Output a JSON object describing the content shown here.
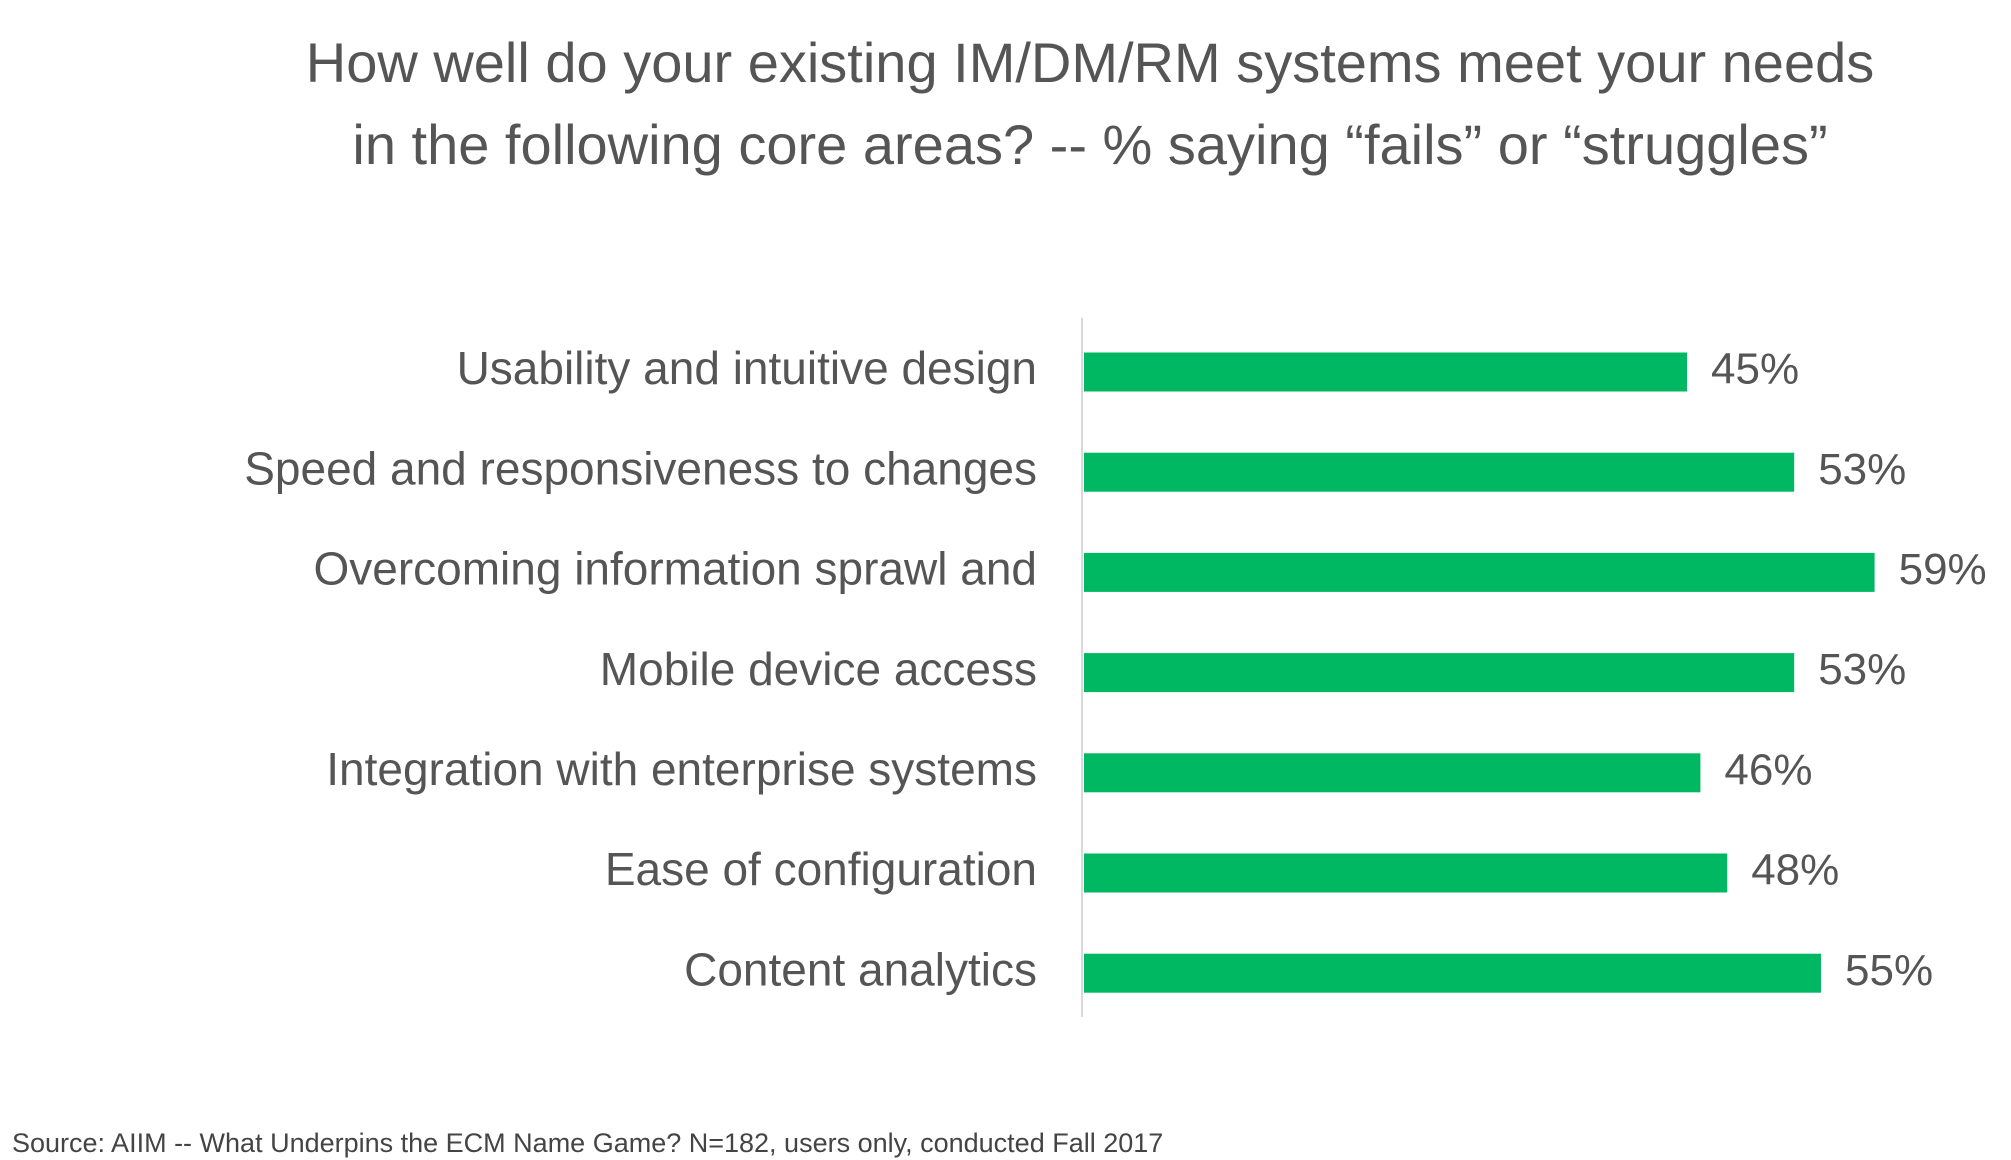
{
  "chart_data": {
    "type": "bar",
    "orientation": "horizontal",
    "title": "How well do your existing IM/DM/RM systems meet your needs in the following core areas? -- % saying “fails” or “struggles”",
    "categories": [
      "Usability and intuitive design",
      "Speed and responsiveness to changes",
      "Overcoming information sprawl and",
      "Mobile device access",
      "Integration with enterprise systems",
      "Ease of configuration",
      "Content analytics"
    ],
    "values": [
      45,
      53,
      59,
      53,
      46,
      48,
      55
    ],
    "value_labels": [
      "45%",
      "53%",
      "59%",
      "53%",
      "46%",
      "48%",
      "55%"
    ],
    "color": "#00b862",
    "source": "Source: AIIM -- What Underpins the ECM Name Game? N=182, users only, conducted Fall 2017"
  }
}
